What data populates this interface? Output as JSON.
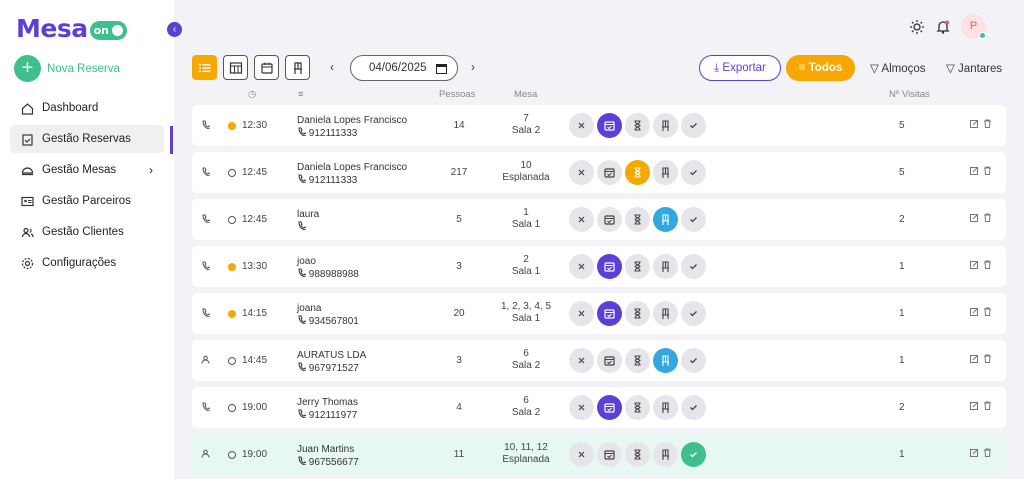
{
  "brand": {
    "name": "Mesa",
    "suffix": "on",
    "color": "#5b3fd6",
    "accent": "#3fbf8c"
  },
  "sidebar": {
    "new_button": "Nova Reserva",
    "items": [
      {
        "label": "Dashboard",
        "icon": "home-icon"
      },
      {
        "label": "Gestão Reservas",
        "icon": "clipboard-icon",
        "active": true
      },
      {
        "label": "Gestão Mesas",
        "icon": "dish-icon",
        "has_submenu": true
      },
      {
        "label": "Gestão Parceiros",
        "icon": "id-card-icon"
      },
      {
        "label": "Gestão Clientes",
        "icon": "users-icon"
      },
      {
        "label": "Configurações",
        "icon": "gear-icon"
      }
    ]
  },
  "header": {
    "avatar_initial": "P"
  },
  "toolbar": {
    "date": "04/06/2025",
    "export_label": "Exportar",
    "all_label": "Todos",
    "lunch_label": "Almoços",
    "dinner_label": "Jantares",
    "active_view": "list"
  },
  "columns": {
    "people": "Pessoas",
    "table": "Mesa",
    "visits": "Nº Visitas"
  },
  "reservations": [
    {
      "source": "phone",
      "time": "12:30",
      "time_state": "orange",
      "name": "Daniela Lopes Francisco",
      "phone": "912111333",
      "people": "14",
      "table": "7",
      "room": "Sala 2",
      "status": "confirmed",
      "visits": "5"
    },
    {
      "source": "phone",
      "time": "12:45",
      "time_state": "gray",
      "name": "Daniela Lopes Francisco",
      "phone": "912111333",
      "people": "217",
      "table": "10",
      "room": "Esplanada",
      "status": "waiting",
      "visits": "5"
    },
    {
      "source": "phone",
      "time": "12:45",
      "time_state": "gray",
      "name": "laura",
      "phone": "",
      "people": "5",
      "table": "1",
      "room": "Sala 1",
      "status": "seated",
      "visits": "2"
    },
    {
      "source": "phone",
      "time": "13:30",
      "time_state": "orange",
      "name": "joao",
      "phone": "988988988",
      "people": "3",
      "table": "2",
      "room": "Sala 1",
      "status": "confirmed",
      "visits": "1"
    },
    {
      "source": "phone",
      "time": "14:15",
      "time_state": "orange",
      "name": "joana",
      "phone": "934567801",
      "people": "20",
      "table": "1, 2, 3, 4, 5",
      "room": "Sala 1",
      "status": "confirmed",
      "visits": "1"
    },
    {
      "source": "person",
      "time": "14:45",
      "time_state": "gray",
      "name": "AURATUS LDA",
      "phone": "967971527",
      "people": "3",
      "table": "6",
      "room": "Sala 2",
      "status": "seated",
      "visits": "1"
    },
    {
      "source": "phone",
      "time": "19:00",
      "time_state": "gray",
      "name": "Jerry Thomas",
      "phone": "912111977",
      "people": "4",
      "table": "6",
      "room": "Sala 2",
      "status": "confirmed",
      "visits": "2"
    },
    {
      "source": "person",
      "time": "19:00",
      "time_state": "gray",
      "name": "Juan Martins",
      "phone": "967556677",
      "people": "11",
      "table": "10, 11, 12",
      "room": "Esplanada",
      "status": "done",
      "visits": "1"
    }
  ]
}
